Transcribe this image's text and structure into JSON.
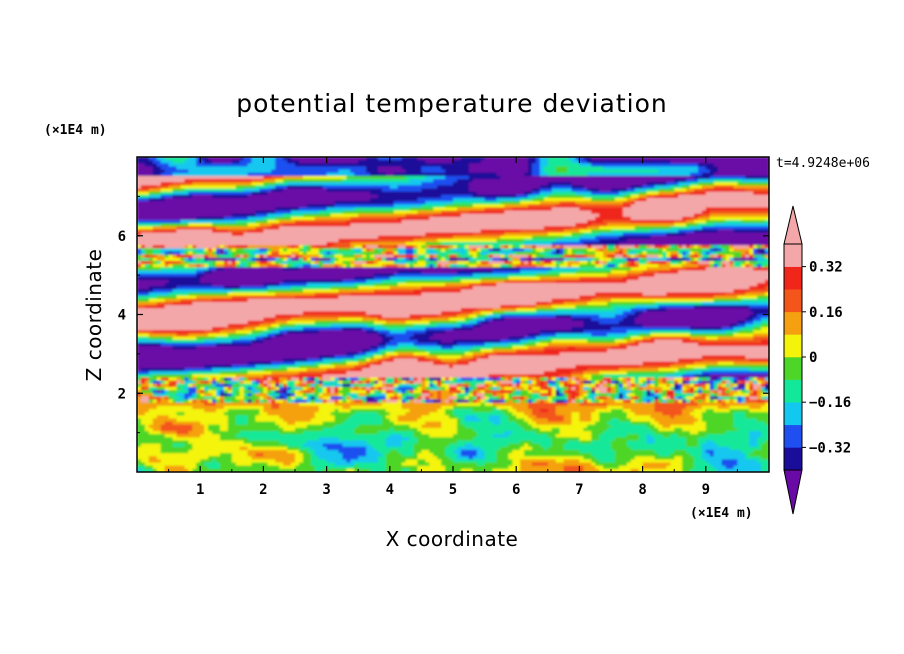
{
  "chart_data": {
    "type": "heatmap",
    "title": "potential temperature deviation",
    "xlabel": "X coordinate",
    "ylabel": "Z coordinate",
    "x_unit": "(×1E4 m)",
    "y_unit": "(×1E4 m)",
    "time_label": "t=4.9248e+06",
    "xlim": [
      0,
      10
    ],
    "ylim": [
      0,
      8
    ],
    "x_ticks": [
      1,
      2,
      3,
      4,
      5,
      6,
      7,
      8,
      9
    ],
    "y_ticks": [
      2,
      4,
      6
    ],
    "colorbar": {
      "levels": [
        -0.4,
        -0.32,
        -0.24,
        -0.16,
        -0.08,
        0,
        0.08,
        0.16,
        0.24,
        0.32,
        0.4
      ],
      "tick_labels": [
        "0.32",
        "0.16",
        "0",
        "−0.16",
        "−0.32"
      ],
      "tick_values": [
        0.32,
        0.16,
        0,
        -0.16,
        -0.32
      ],
      "colors": [
        "#6a0aa6",
        "#1a0d9a",
        "#1f4ff0",
        "#12c8ef",
        "#12e89a",
        "#4dd628",
        "#f4f40a",
        "#f5a010",
        "#f3551a",
        "#f0261b",
        "#f4a7a8",
        "#6a0aa6"
      ],
      "under_color": "#6a0aa6",
      "over_color": "#f4a7a8"
    },
    "regions": {
      "upper_bands_0_1": {
        "z_range": [
          7.5,
          8
        ],
        "value": "below -0.4"
      },
      "lower_boundary_layer": {
        "z_range": [
          0,
          1.7
        ],
        "value_range": [
          -0.4,
          0.24
        ]
      },
      "upper_layer": {
        "z_range": [
          1.7,
          8
        ],
        "value": "mostly below -0.4 or above 0.4"
      }
    }
  }
}
